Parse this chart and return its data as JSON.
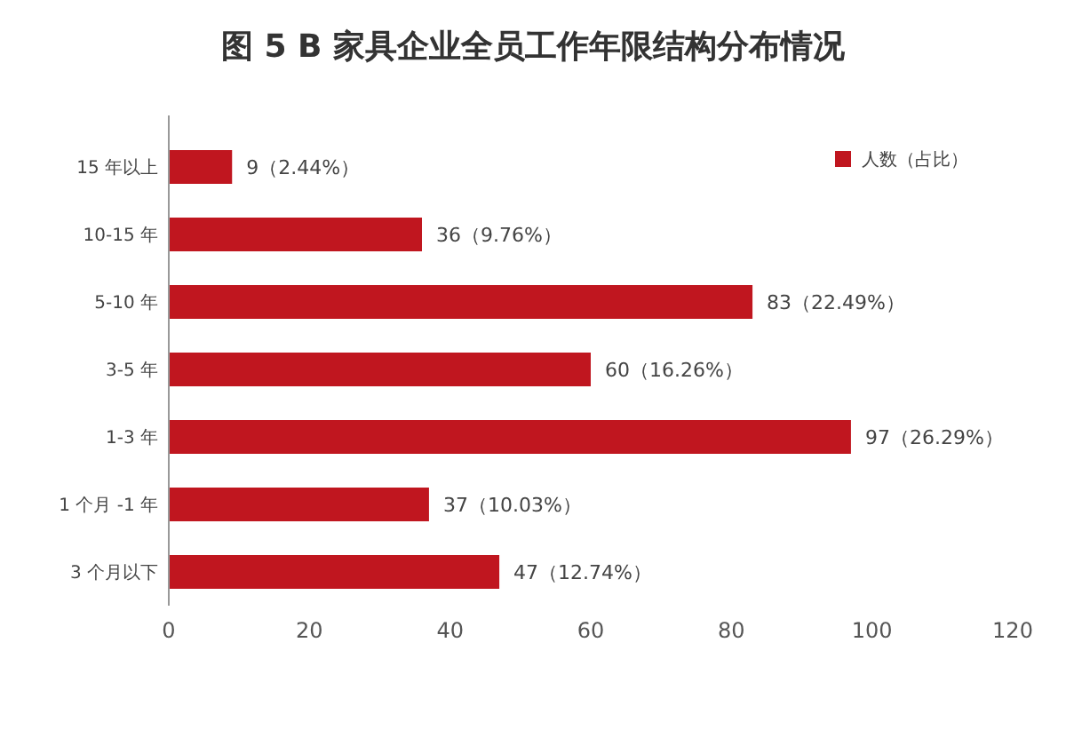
{
  "chart_data": {
    "type": "bar",
    "orientation": "horizontal",
    "title": "图 5  B 家具企业全员工作年限结构分布情况",
    "categories": [
      "15 年以上",
      "10-15 年",
      "5-10 年",
      "3-5 年",
      "1-3 年",
      "1 个月 -1 年",
      "3 个月以下"
    ],
    "series": [
      {
        "name": "人数（占比）",
        "color": "#c0161f",
        "values": [
          9,
          36,
          83,
          60,
          97,
          37,
          47
        ],
        "value_labels": [
          "9（2.44%）",
          "36（9.76%）",
          "83（22.49%）",
          "60（16.26%）",
          "97（26.29%）",
          "37（10.03%）",
          "47（12.74%）"
        ]
      }
    ],
    "xlim": [
      0,
      120
    ],
    "xticks": [
      0,
      20,
      40,
      60,
      80,
      100,
      120
    ],
    "legend": "top right",
    "grid": false
  }
}
